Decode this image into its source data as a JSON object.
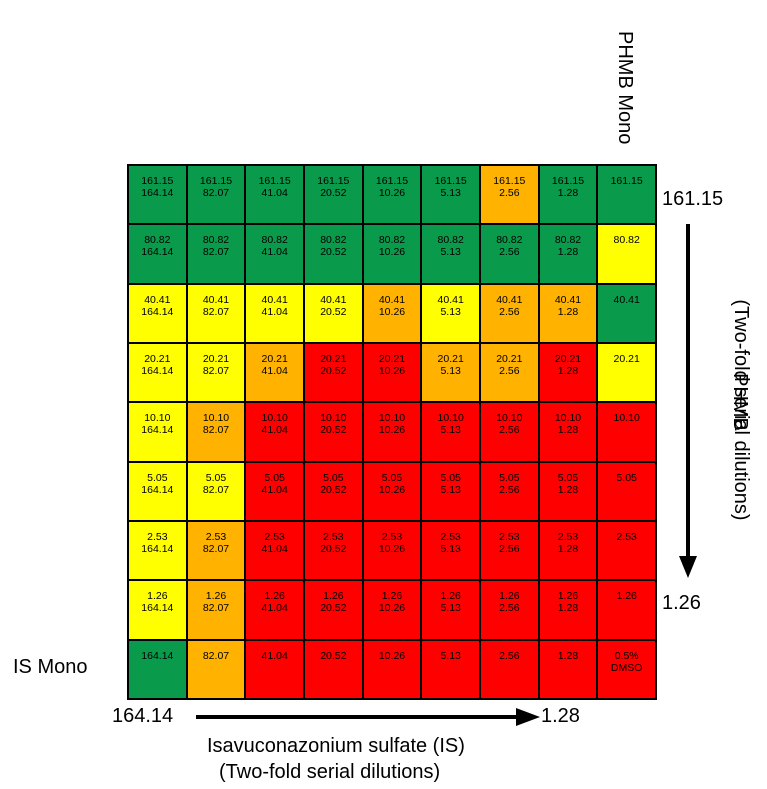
{
  "colors": {
    "green": "#0a9a4b",
    "yellow": "#ffff00",
    "orange": "#ffb300",
    "red": "#ff0000"
  },
  "labels": {
    "top_column": "PHMB Mono",
    "left_row": "IS Mono",
    "y_top": "161.15",
    "y_bottom": "1.26",
    "x_left": "164.14",
    "x_right": "1.28",
    "y_title": "PHMB",
    "y_subtitle": "(Two-fold serial dilutions)",
    "x_title": "Isavuconazonium sulfate (IS)",
    "x_subtitle": "(Two-fold serial dilutions)"
  },
  "chart_data": {
    "type": "heatmap",
    "title": "",
    "row_label": "PHMB (Two-fold serial dilutions)",
    "col_label": "Isavuconazonium sulfate (IS) (Two-fold serial dilutions)",
    "phmb_rows": [
      "161.15",
      "80.82",
      "40.41",
      "20.21",
      "10.10",
      "5.05",
      "2.53",
      "1.26"
    ],
    "is_cols": [
      "164.14",
      "82.07",
      "41.04",
      "20.52",
      "10.26",
      "5.13",
      "2.56",
      "1.28"
    ],
    "legend": [],
    "cells": [
      [
        {
          "lines": [
            "161.15",
            "164.14"
          ],
          "color": "green"
        },
        {
          "lines": [
            "161.15",
            "82.07"
          ],
          "color": "green"
        },
        {
          "lines": [
            "161.15",
            "41.04"
          ],
          "color": "green"
        },
        {
          "lines": [
            "161.15",
            "20.52"
          ],
          "color": "green"
        },
        {
          "lines": [
            "161.15",
            "10.26"
          ],
          "color": "green"
        },
        {
          "lines": [
            "161.15",
            "5.13"
          ],
          "color": "green"
        },
        {
          "lines": [
            "161.15",
            "2.56"
          ],
          "color": "orange"
        },
        {
          "lines": [
            "161.15",
            "1.28"
          ],
          "color": "green"
        },
        {
          "lines": [
            "161.15"
          ],
          "color": "green"
        }
      ],
      [
        {
          "lines": [
            "80.82",
            "164.14"
          ],
          "color": "green"
        },
        {
          "lines": [
            "80.82",
            "82.07"
          ],
          "color": "green"
        },
        {
          "lines": [
            "80.82",
            "41.04"
          ],
          "color": "green"
        },
        {
          "lines": [
            "80.82",
            "20.52"
          ],
          "color": "green"
        },
        {
          "lines": [
            "80.82",
            "10.26"
          ],
          "color": "green"
        },
        {
          "lines": [
            "80.82",
            "5.13"
          ],
          "color": "green"
        },
        {
          "lines": [
            "80.82",
            "2.56"
          ],
          "color": "green"
        },
        {
          "lines": [
            "80.82",
            "1.28"
          ],
          "color": "green"
        },
        {
          "lines": [
            "80.82"
          ],
          "color": "yellow"
        }
      ],
      [
        {
          "lines": [
            "40.41",
            "164.14"
          ],
          "color": "yellow"
        },
        {
          "lines": [
            "40.41",
            "82.07"
          ],
          "color": "yellow"
        },
        {
          "lines": [
            "40.41",
            "41.04"
          ],
          "color": "yellow"
        },
        {
          "lines": [
            "40.41",
            "20.52"
          ],
          "color": "yellow"
        },
        {
          "lines": [
            "40.41",
            "10.26"
          ],
          "color": "orange"
        },
        {
          "lines": [
            "40.41",
            "5.13"
          ],
          "color": "yellow"
        },
        {
          "lines": [
            "40.41",
            "2.56"
          ],
          "color": "orange"
        },
        {
          "lines": [
            "40.41",
            "1.28"
          ],
          "color": "orange"
        },
        {
          "lines": [
            "40.41"
          ],
          "color": "green"
        }
      ],
      [
        {
          "lines": [
            "20.21",
            "164.14"
          ],
          "color": "yellow"
        },
        {
          "lines": [
            "20.21",
            "82.07"
          ],
          "color": "yellow"
        },
        {
          "lines": [
            "20.21",
            "41.04"
          ],
          "color": "orange"
        },
        {
          "lines": [
            "20.21",
            "20.52"
          ],
          "color": "red"
        },
        {
          "lines": [
            "20.21",
            "10.26"
          ],
          "color": "red"
        },
        {
          "lines": [
            "20.21",
            "5.13"
          ],
          "color": "orange"
        },
        {
          "lines": [
            "20.21",
            "2.56"
          ],
          "color": "orange"
        },
        {
          "lines": [
            "20.21",
            "1.28"
          ],
          "color": "red"
        },
        {
          "lines": [
            "20.21"
          ],
          "color": "yellow"
        }
      ],
      [
        {
          "lines": [
            "10.10",
            "164.14"
          ],
          "color": "yellow"
        },
        {
          "lines": [
            "10.10",
            "82.07"
          ],
          "color": "orange"
        },
        {
          "lines": [
            "10.10",
            "41.04"
          ],
          "color": "red"
        },
        {
          "lines": [
            "10.10",
            "20.52"
          ],
          "color": "red"
        },
        {
          "lines": [
            "10.10",
            "10.26"
          ],
          "color": "red"
        },
        {
          "lines": [
            "10.10",
            "5.13"
          ],
          "color": "red"
        },
        {
          "lines": [
            "10.10",
            "2.56"
          ],
          "color": "red"
        },
        {
          "lines": [
            "10.10",
            "1.28"
          ],
          "color": "red"
        },
        {
          "lines": [
            "10.10"
          ],
          "color": "red"
        }
      ],
      [
        {
          "lines": [
            "5.05",
            "164.14"
          ],
          "color": "yellow"
        },
        {
          "lines": [
            "5.05",
            "82.07"
          ],
          "color": "yellow"
        },
        {
          "lines": [
            "5.05",
            "41.04"
          ],
          "color": "red"
        },
        {
          "lines": [
            "5.05",
            "20.52"
          ],
          "color": "red"
        },
        {
          "lines": [
            "5.05",
            "10.26"
          ],
          "color": "red"
        },
        {
          "lines": [
            "5.05",
            "5.13"
          ],
          "color": "red"
        },
        {
          "lines": [
            "5.05",
            "2.56"
          ],
          "color": "red"
        },
        {
          "lines": [
            "5.05",
            "1.28"
          ],
          "color": "red"
        },
        {
          "lines": [
            "5.05"
          ],
          "color": "red"
        }
      ],
      [
        {
          "lines": [
            "2.53",
            "164.14"
          ],
          "color": "yellow"
        },
        {
          "lines": [
            "2.53",
            "82.07"
          ],
          "color": "orange"
        },
        {
          "lines": [
            "2.53",
            "41.04"
          ],
          "color": "red"
        },
        {
          "lines": [
            "2.53",
            "20.52"
          ],
          "color": "red"
        },
        {
          "lines": [
            "2.53",
            "10.26"
          ],
          "color": "red"
        },
        {
          "lines": [
            "2.53",
            "5.13"
          ],
          "color": "red"
        },
        {
          "lines": [
            "2.53",
            "2.56"
          ],
          "color": "red"
        },
        {
          "lines": [
            "2.53",
            "1.28"
          ],
          "color": "red"
        },
        {
          "lines": [
            "2.53"
          ],
          "color": "red"
        }
      ],
      [
        {
          "lines": [
            "1.26",
            "164.14"
          ],
          "color": "yellow"
        },
        {
          "lines": [
            "1.26",
            "82.07"
          ],
          "color": "orange"
        },
        {
          "lines": [
            "1.26",
            "41.04"
          ],
          "color": "red"
        },
        {
          "lines": [
            "1.26",
            "20.52"
          ],
          "color": "red"
        },
        {
          "lines": [
            "1.26",
            "10.26"
          ],
          "color": "red"
        },
        {
          "lines": [
            "1.26",
            "5.13"
          ],
          "color": "red"
        },
        {
          "lines": [
            "1.26",
            "2.56"
          ],
          "color": "red"
        },
        {
          "lines": [
            "1.26",
            "1.28"
          ],
          "color": "red"
        },
        {
          "lines": [
            "1.26"
          ],
          "color": "red"
        }
      ],
      [
        {
          "lines": [
            "164.14"
          ],
          "color": "green"
        },
        {
          "lines": [
            "82.07"
          ],
          "color": "orange"
        },
        {
          "lines": [
            "41.04"
          ],
          "color": "red"
        },
        {
          "lines": [
            "20.52"
          ],
          "color": "red"
        },
        {
          "lines": [
            "10.26"
          ],
          "color": "red"
        },
        {
          "lines": [
            "5.13"
          ],
          "color": "red"
        },
        {
          "lines": [
            "2.56"
          ],
          "color": "red"
        },
        {
          "lines": [
            "1.28"
          ],
          "color": "red"
        },
        {
          "lines": [
            "0.5%",
            "DMSO"
          ],
          "color": "red"
        }
      ]
    ]
  }
}
